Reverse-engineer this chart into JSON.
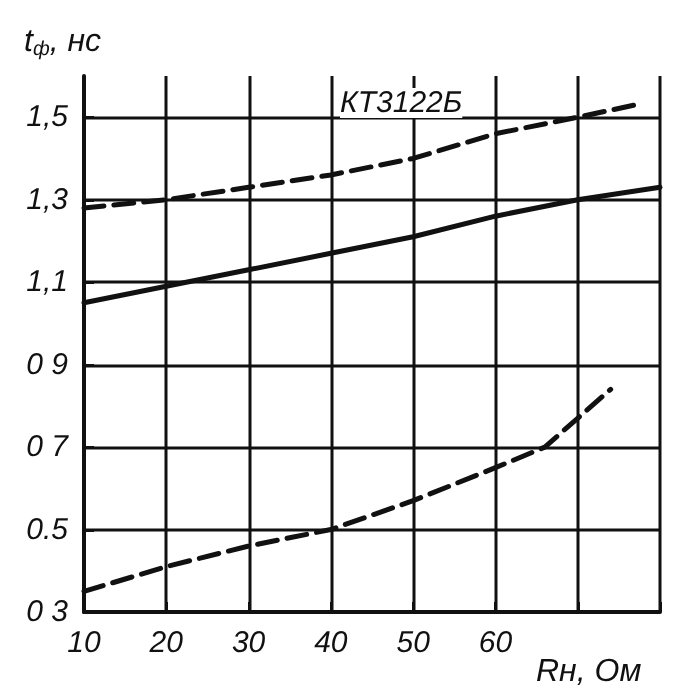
{
  "chart_data": {
    "type": "line",
    "ylabel": "t$_{ф}$, нс",
    "xlabel": "Rн, Ом",
    "annotations": [
      "КТ3122Б"
    ],
    "xlim": [
      10,
      80
    ],
    "xticks": [
      10,
      20,
      30,
      40,
      50,
      60,
      {
        "value": 70,
        "label": null
      },
      {
        "value": 80,
        "label": null
      }
    ],
    "ylim": [
      0.3,
      1.6
    ],
    "yticks": [
      {
        "value": 0.3,
        "label": "0 3"
      },
      {
        "value": 0.5,
        "label": "0.5"
      },
      {
        "value": 0.7,
        "label": "0 7"
      },
      {
        "value": 0.9,
        "label": "0 9"
      },
      {
        "value": 1.1,
        "label": "1,1"
      },
      {
        "value": 1.3,
        "label": "1,3"
      },
      {
        "value": 1.5,
        "label": "1,5"
      }
    ],
    "grid": true,
    "marker": "none",
    "series": [
      {
        "color": "#111111",
        "line_style": "dashed",
        "x": [
          10,
          20,
          30,
          40,
          50,
          60,
          70,
          77
        ],
        "values": [
          1.28,
          1.3,
          1.33,
          1.36,
          1.4,
          1.46,
          1.5,
          1.53
        ]
      },
      {
        "color": "#111111",
        "line_style": "solid",
        "x": [
          10,
          20,
          30,
          40,
          50,
          60,
          70,
          80
        ],
        "values": [
          1.05,
          1.09,
          1.13,
          1.17,
          1.21,
          1.26,
          1.3,
          1.33
        ]
      },
      {
        "color": "#111111",
        "line_style": "dashed",
        "x": [
          10,
          20,
          30,
          40,
          50,
          60,
          66,
          74
        ],
        "values": [
          0.35,
          0.41,
          0.46,
          0.5,
          0.57,
          0.65,
          0.7,
          0.84
        ]
      }
    ]
  }
}
